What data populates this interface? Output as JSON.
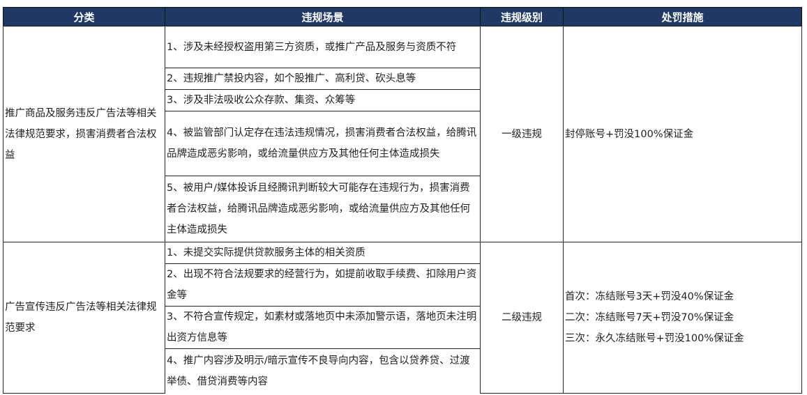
{
  "header": [
    "分类",
    "违规场景",
    "违规级别",
    "处罚措施"
  ],
  "groups": [
    {
      "category": "推广商品及服务违反广告法等相关法律规范要求，损害消费者合法权益",
      "scenarios": [
        "1、涉及未经授权盗用第三方资质，或推广产品及服务与资质不符",
        "2、违规推广禁投内容，如个股推广、高利贷、砍头息等",
        "3、涉及非法吸收公众存款、集资、众筹等",
        "4、被监管部门认定存在违法违规情况，损害消费者合法权益，给腾讯品牌造成恶劣影响，或给流量供应方及其他任何主体造成损失",
        "5、被用户/媒体投诉且经腾讯判断较大可能存在违规行为，损害消费者合法权益，给腾讯品牌造成恶劣影响，或给流量供应方及其他任何主体造成损失"
      ],
      "level": "一级违规",
      "penalty": [
        "封停账号+罚没100%保证金"
      ]
    },
    {
      "category": "广告宣传违反广告法等相关法律规范要求",
      "scenarios": [
        "1、未提交实际提供贷款服务主体的相关资质",
        "2、出现不符合法规要求的经营行为，如提前收取手续费、扣除用户资金等",
        "3、不符合宣传规定，如素材或落地页中未添加警示语，落地页未注明出资方信息等",
        "4、推广内容涉及明示/暗示宣传不良导向内容，包含以贷养贷、过渡举债、借贷消费等内容"
      ],
      "level": "二级违规",
      "penalty": [
        "首次：冻结账号3天+罚没40%保证金",
        "二次：冻结账号7天+罚没70%保证金",
        "三次：永久冻结账号+罚没100%保证金"
      ]
    }
  ]
}
